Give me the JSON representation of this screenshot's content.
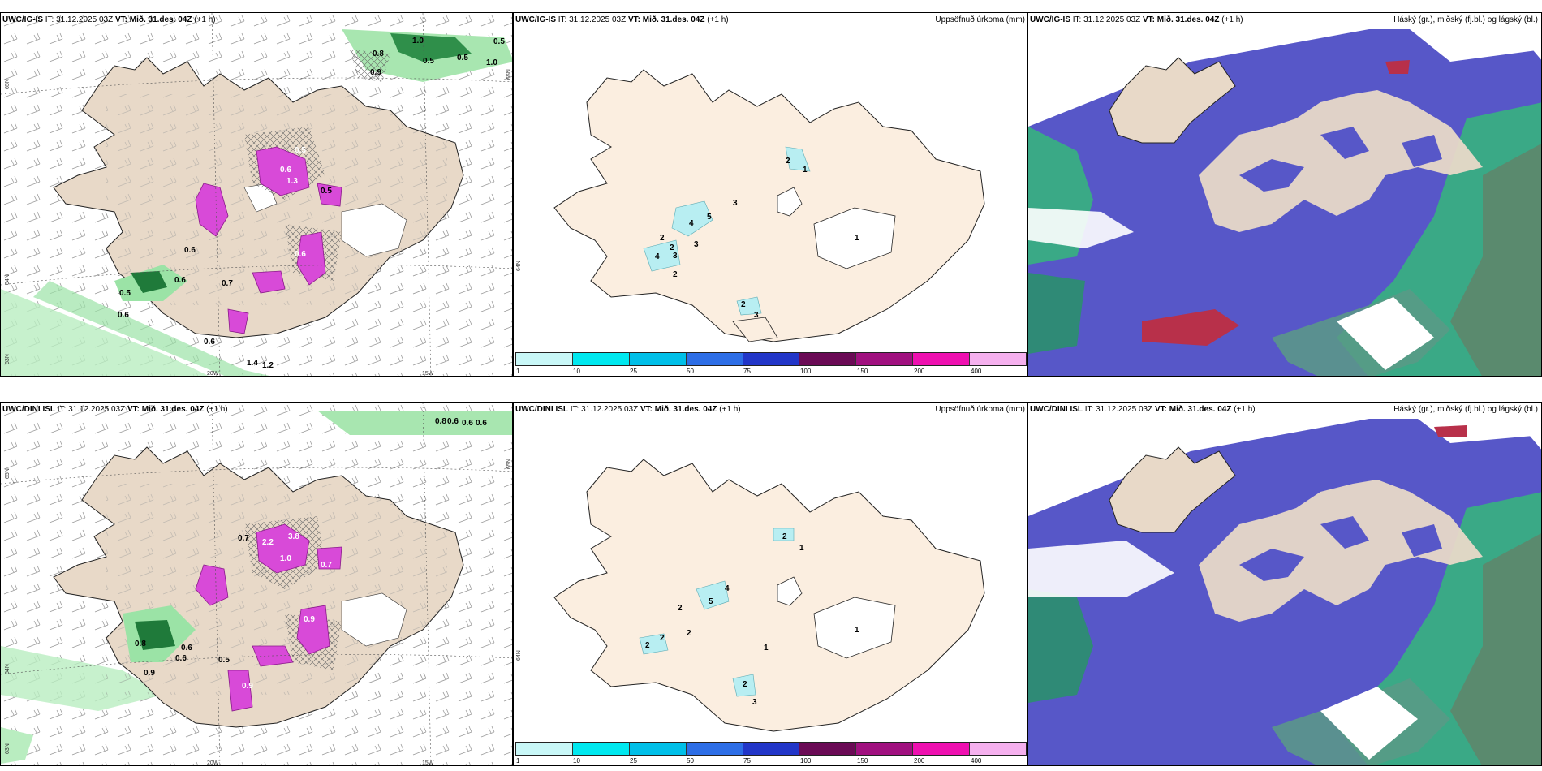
{
  "rows": [
    {
      "model": "UWC/IG-IS",
      "it_label": "IT:",
      "it_value": "31.12.2025 03Z",
      "vt_label": "VT:",
      "vt_value": "Mið. 31.des. 04Z",
      "lead": "(+1 h)"
    },
    {
      "model": "UWC/DINI ISL",
      "it_label": "IT:",
      "it_value": "31.12.2025 03Z",
      "vt_label": "VT:",
      "vt_value": "Mið. 31.des. 04Z",
      "lead": "(+1 h)"
    }
  ],
  "panels": {
    "precip_title": "Uppsöfnuð úrkoma (mm)",
    "cloud_title": "Háský (gr.), miðský (fj.bl.) og lágský (bl.)"
  },
  "axis_labels": {
    "lat_65": "65N",
    "lat_64": "64N",
    "lat_63": "63N",
    "lon_20": "20W",
    "lon_15": "15W"
  },
  "colorbar": {
    "ticks": [
      "1",
      "10",
      "25",
      "50",
      "75",
      "100",
      "150",
      "200",
      "400"
    ],
    "colors": [
      "#c8f7f7",
      "#00e8ef",
      "#00bfe8",
      "#2d6ee6",
      "#2236c8",
      "#6a0a55",
      "#a0107f",
      "#ee10b0",
      "#f5b0ee"
    ]
  },
  "map_labels": {
    "row1_wind": [
      "1.0",
      "0.5",
      "0.8",
      "0.5",
      "0.5",
      "1.0",
      "0.9",
      "0.5",
      "0.6",
      "1.3",
      "0.5",
      "0.7",
      "0.6",
      "0.5",
      "0.6",
      "0.6",
      "0.6",
      "1.4",
      "1.2",
      "0.6"
    ],
    "row1_precip": [
      "2",
      "1",
      "3",
      "5",
      "4",
      "2",
      "2",
      "4",
      "3",
      "3",
      "2",
      "1",
      "2",
      "3"
    ],
    "row2_wind": [
      "0.8",
      "0.6",
      "0.6",
      "0.6",
      "0.7",
      "2.2",
      "3.8",
      "1.0",
      "0.7",
      "0.9",
      "0.8",
      "0.6",
      "0.6",
      "0.9",
      "0.5",
      "0.9"
    ],
    "row2_precip": [
      "2",
      "1",
      "4",
      "5",
      "2",
      "2",
      "2",
      "2",
      "1",
      "1",
      "2",
      "3"
    ]
  },
  "colors": {
    "land": "#e8d9c8",
    "land_light": "#fbeee0",
    "sea": "#ffffff",
    "green_pale": "#a8e6b0",
    "green_dark": "#1f7a3a",
    "magenta": "#d84ad8",
    "cloud_purple": "#5757c8",
    "cloud_teal": "#3aa986",
    "cloud_red": "#b8304a"
  }
}
